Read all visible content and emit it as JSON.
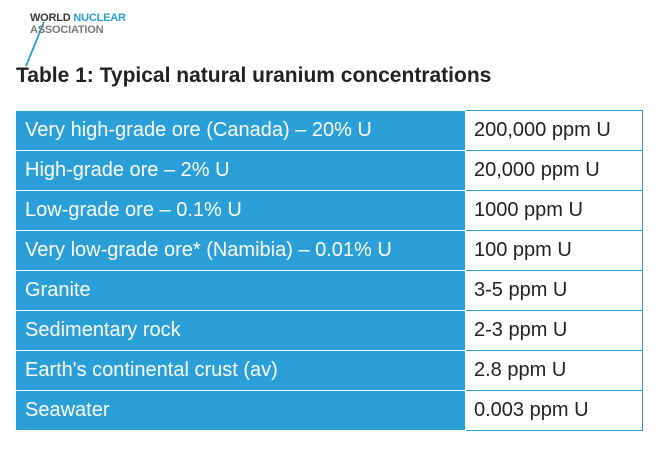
{
  "logo": {
    "word1": "WORLD",
    "word2": "NUCLEAR",
    "line2": "ASSOCIATION"
  },
  "title": "Table 1: Typical natural uranium concentrations",
  "table": {
    "rows": [
      [
        "Very high-grade ore (Canada) – 20% U",
        "200,000 ppm U"
      ],
      [
        "High-grade ore – 2% U",
        "20,000 ppm U"
      ],
      [
        "Low-grade ore – 0.1% U",
        "1000 ppm U"
      ],
      [
        "Very low-grade ore* (Namibia) – 0.01% U",
        "100 ppm U"
      ],
      [
        "Granite",
        "3-5 ppm U"
      ],
      [
        "Sedimentary rock",
        "2-3 ppm U"
      ],
      [
        "Earth's continental crust (av)",
        "2.8 ppm U"
      ],
      [
        "Seawater",
        "0.003 ppm U"
      ]
    ]
  }
}
